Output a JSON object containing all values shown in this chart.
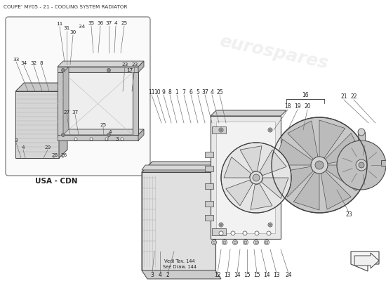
{
  "title": "COUPE' MY05 - 21 - COOLING SYSTEM RADIATOR",
  "bg_color": "#ffffff",
  "lc": "#444444",
  "tc": "#222222",
  "fill_light": "#f0f0f0",
  "fill_mid": "#e0e0e0",
  "fill_dark": "#c8c8c8",
  "fill_rad": "#d8d8d8",
  "wc": "#dddddd",
  "eurospares_text": "eurospares",
  "usa_cdn": "USA - CDN",
  "vedi": "Vedi Tav. 144",
  "see_draw": "See Draw. 144"
}
